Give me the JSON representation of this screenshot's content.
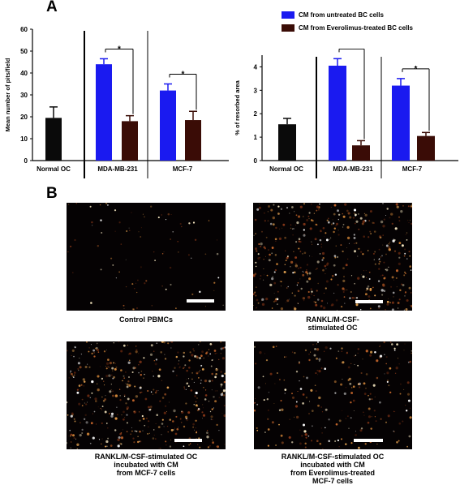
{
  "panel_a_label": "A",
  "panel_b_label": "B",
  "legend": [
    {
      "label": "CM from untreated BC cells",
      "color": "#1a1af0"
    },
    {
      "label": "CM from Everolimus-treated BC cells",
      "color": "#3a0c06"
    }
  ],
  "chart_data": [
    {
      "type": "bar",
      "ylabel": "Mean number of pits/field",
      "ylim": [
        0,
        60
      ],
      "yticks": [
        0,
        10,
        20,
        30,
        40,
        50,
        60
      ],
      "groups": [
        {
          "label": "Normal OC",
          "bars": [
            {
              "series": "Normal OC",
              "value": 19.5,
              "error": 5,
              "color": "#0a0a0a"
            }
          ]
        },
        {
          "label": "MDA-MB-231",
          "bars": [
            {
              "series": "CM from untreated BC cells",
              "value": 44,
              "error": 2.5,
              "color": "#1a1af0"
            },
            {
              "series": "CM from Everolimus-treated BC cells",
              "value": 18,
              "error": 2.5,
              "color": "#3a0c06"
            }
          ],
          "significance": "*"
        },
        {
          "label": "MCF-7",
          "bars": [
            {
              "series": "CM from untreated BC cells",
              "value": 32,
              "error": 3,
              "color": "#1a1af0"
            },
            {
              "series": "CM from Everolimus-treated BC cells",
              "value": 18.5,
              "error": 4,
              "color": "#3a0c06"
            }
          ],
          "significance": "*"
        }
      ]
    },
    {
      "type": "bar",
      "ylabel": "% of resorbed area",
      "ylim": [
        0,
        4.5
      ],
      "yticks": [
        0,
        1,
        2,
        3,
        4
      ],
      "groups": [
        {
          "label": "Normal OC",
          "bars": [
            {
              "series": "Normal OC",
              "value": 1.55,
              "error": 0.25,
              "color": "#0a0a0a"
            }
          ]
        },
        {
          "label": "MDA-MB-231",
          "bars": [
            {
              "series": "CM from untreated BC cells",
              "value": 4.05,
              "error": 0.3,
              "color": "#1a1af0"
            },
            {
              "series": "CM from Everolimus-treated BC cells",
              "value": 0.65,
              "error": 0.2,
              "color": "#3a0c06"
            }
          ],
          "significance": "*"
        },
        {
          "label": "MCF-7",
          "bars": [
            {
              "series": "CM from untreated BC cells",
              "value": 3.2,
              "error": 0.3,
              "color": "#1a1af0"
            },
            {
              "series": "CM from Everolimus-treated BC cells",
              "value": 1.05,
              "error": 0.15,
              "color": "#3a0c06"
            }
          ],
          "significance": "*"
        }
      ]
    }
  ],
  "micrographs": [
    {
      "caption": "Control PBMCs",
      "density": "sparse"
    },
    {
      "caption": "RANKL/M-CSF-\nstimulated OC",
      "density": "dense"
    },
    {
      "caption": "RANKL/M-CSF-stimulated OC\nincubated with CM\nfrom MCF-7 cells",
      "density": "dense"
    },
    {
      "caption": "RANKL/M-CSF-stimulated OC\nincubated with CM\nfrom Everolimus-treated\nMCF-7 cells",
      "density": "moderate"
    }
  ]
}
